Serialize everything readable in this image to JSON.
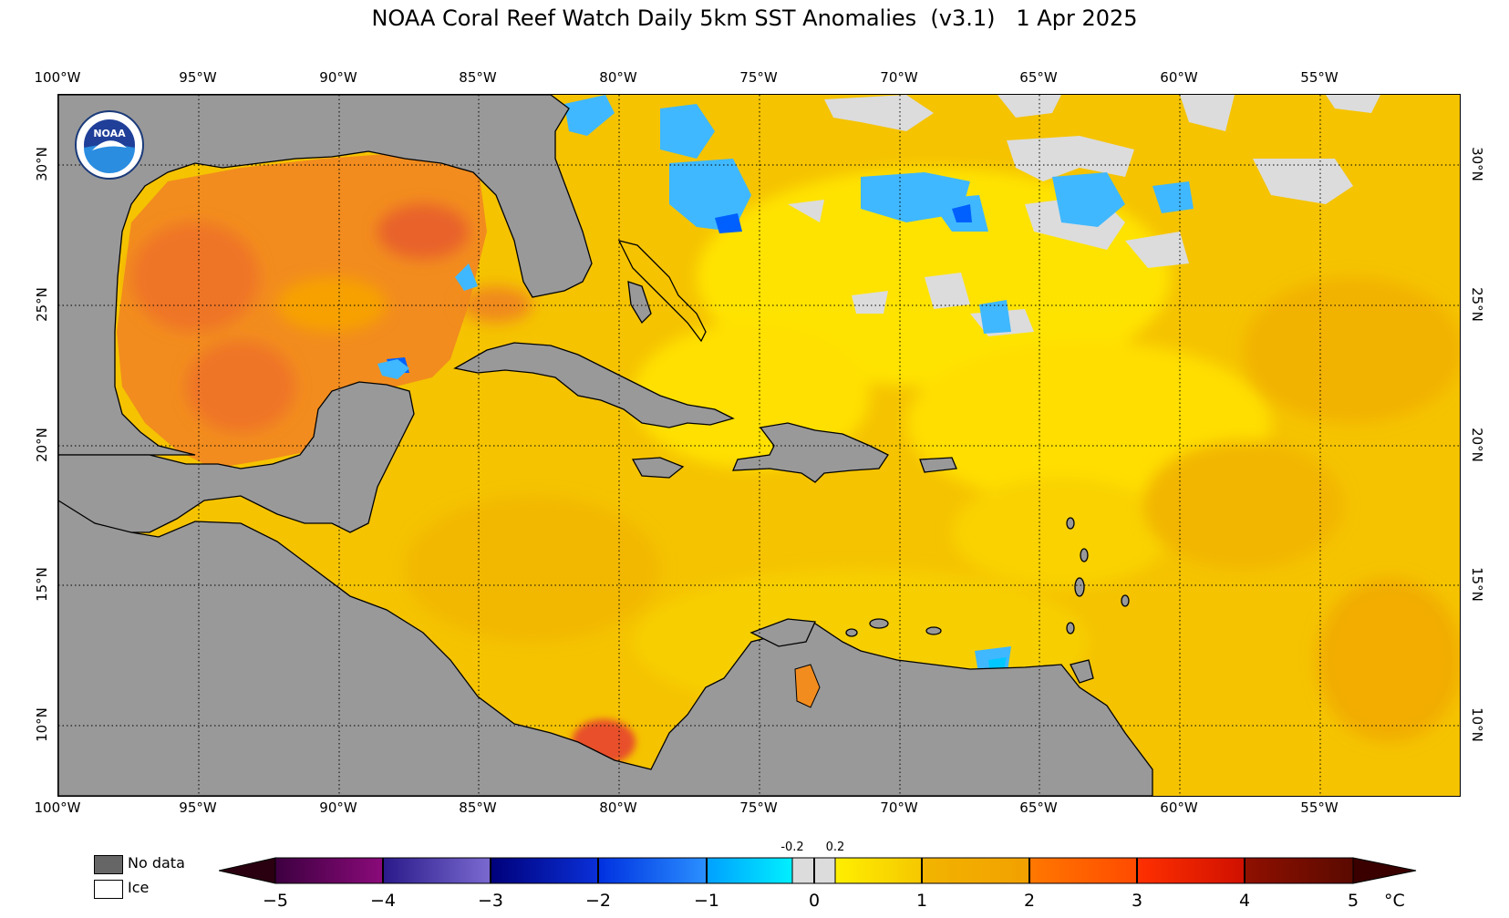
{
  "title": "NOAA Coral Reef Watch Daily 5km SST Anomalies  (v3.1)   1 Apr 2025",
  "axes": {
    "lon_ticks": [
      "100°W",
      "95°W",
      "90°W",
      "85°W",
      "80°W",
      "75°W",
      "70°W",
      "65°W",
      "60°W",
      "55°W"
    ],
    "lat_ticks_left": [
      "30°N",
      "25°N",
      "20°N",
      "15°N",
      "10°N"
    ],
    "lat_ticks_right": [
      "30°N",
      "25°N",
      "20°N",
      "15°N",
      "10°N"
    ],
    "lon_range": [
      -100,
      -50
    ],
    "lat_range": [
      7.5,
      32.5
    ],
    "grid": "dotted"
  },
  "legend": {
    "no_data": "No data",
    "ice": "Ice",
    "no_data_color": "#666666",
    "ice_color": "#ffffff"
  },
  "colorbar": {
    "labels": [
      "−5",
      "−4",
      "−3",
      "−2",
      "−1",
      "0",
      "1",
      "2",
      "3",
      "4",
      "5"
    ],
    "small_labels": [
      "-0.2",
      "0.2"
    ],
    "unit": "°C",
    "range": [
      -5,
      5
    ],
    "colors": {
      "below_min": "#2a0010",
      "m5_m4": [
        "#3d0040",
        "#8a0a7a"
      ],
      "m4_m3": [
        "#2a1a8a",
        "#7a6ad0"
      ],
      "m3_m2": [
        "#00007a",
        "#0a30d8"
      ],
      "m2_m1": [
        "#0030e0",
        "#2a90ff"
      ],
      "m1_m02": [
        "#00a0ff",
        "#00f0ff"
      ],
      "m02_02": "#dcdcdc",
      "p02_1": [
        "#ffef00",
        "#f5c800"
      ],
      "p1_2": [
        "#f2b400",
        "#f2a000"
      ],
      "p2_3": [
        "#ff7800",
        "#ff4a00"
      ],
      "p3_4": [
        "#ff3000",
        "#d01000"
      ],
      "p4_5": [
        "#901000",
        "#5a0a00"
      ],
      "above_max": "#3a0000"
    }
  },
  "colors": {
    "land": "#999999",
    "base_anomaly": "#f5c300",
    "warm_gulf": "#f28c1e",
    "cool_anomaly": "#3fb8ff",
    "near_zero": "#dcdcdc"
  },
  "logo": {
    "text": "NOAA",
    "icon": "noaa-logo"
  }
}
